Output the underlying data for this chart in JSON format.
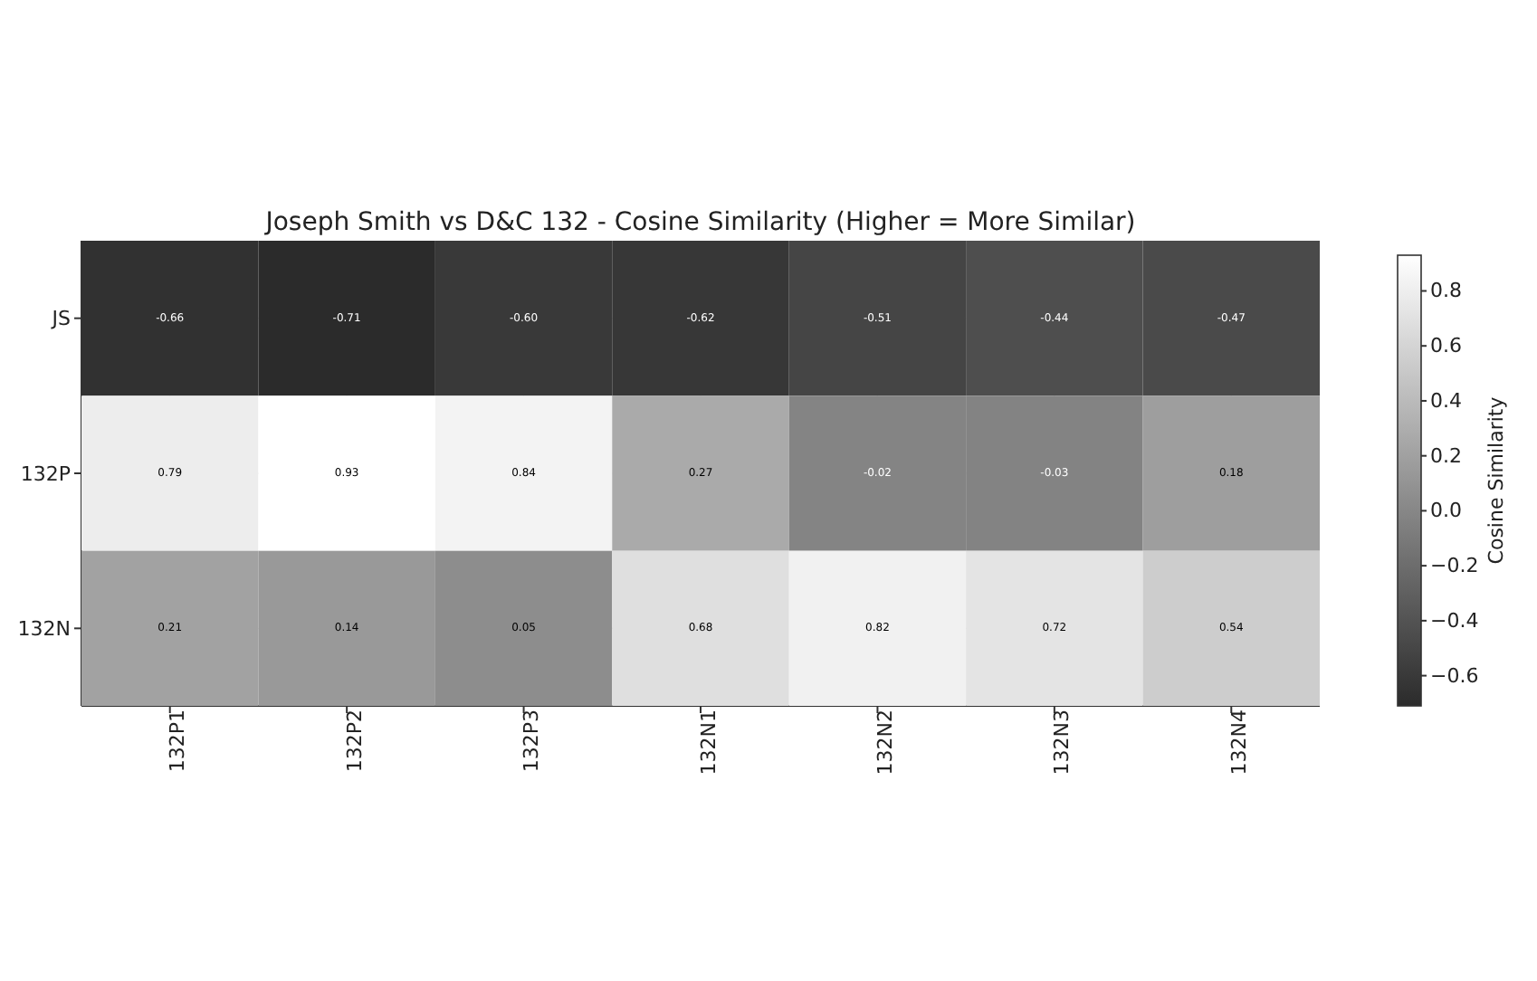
{
  "chart_data": {
    "type": "heatmap",
    "title": "Joseph Smith vs D&C 132 - Cosine Similarity (Higher = More Similar)",
    "categories": [
      "132P1",
      "132P2",
      "132P3",
      "132N1",
      "132N2",
      "132N3",
      "132N4"
    ],
    "y_categories": [
      "JS",
      "132P",
      "132N"
    ],
    "cells": [
      [
        -0.66,
        -0.71,
        -0.6,
        -0.62,
        -0.51,
        -0.44,
        -0.47
      ],
      [
        0.79,
        0.93,
        0.84,
        0.27,
        -0.02,
        -0.03,
        0.18
      ],
      [
        0.21,
        0.14,
        0.05,
        0.68,
        0.82,
        0.72,
        0.54
      ]
    ],
    "cell_labels": [
      [
        "-0.66",
        "-0.71",
        "-0.60",
        "-0.62",
        "-0.51",
        "-0.44",
        "-0.47"
      ],
      [
        "0.79",
        "0.93",
        "0.84",
        "0.27",
        "-0.02",
        "-0.03",
        "0.18"
      ],
      [
        "0.21",
        "0.14",
        "0.05",
        "0.68",
        "0.82",
        "0.72",
        "0.54"
      ]
    ],
    "clabel": "Cosine Similarity",
    "clim": [
      -0.71,
      0.93
    ],
    "cticks": [
      {
        "value": -0.6,
        "label": "−0.6"
      },
      {
        "value": -0.4,
        "label": "−0.4"
      },
      {
        "value": -0.2,
        "label": "−0.2"
      },
      {
        "value": 0,
        "label": "0.0"
      },
      {
        "value": 0.2,
        "label": "0.2"
      },
      {
        "value": 0.4,
        "label": "0.4"
      },
      {
        "value": 0.6,
        "label": "0.6"
      },
      {
        "value": 0.8,
        "label": "0.8"
      }
    ],
    "grid": true
  }
}
